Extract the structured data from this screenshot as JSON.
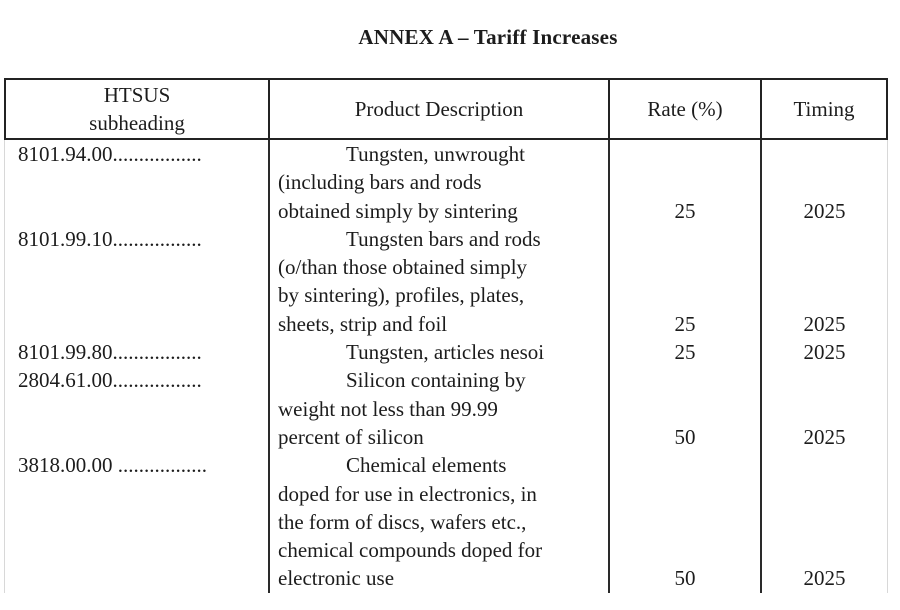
{
  "title": "ANNEX A – Tariff Increases",
  "table": {
    "headers": {
      "htsus_line1": "HTSUS",
      "htsus_line2": "subheading",
      "description": "Product Description",
      "rate": "Rate (%)",
      "timing": "Timing"
    },
    "rows": [
      {
        "code": "8101.94.00.................",
        "description_lines": [
          "Tungsten, unwrought",
          "(including bars and rods",
          "obtained simply by sintering"
        ],
        "rate": "25",
        "timing": "2025"
      },
      {
        "code": "8101.99.10.................",
        "description_lines": [
          "Tungsten bars and rods",
          "(o/than those obtained simply",
          "by sintering), profiles, plates,",
          "sheets, strip and foil"
        ],
        "rate": "25",
        "timing": "2025"
      },
      {
        "code": "8101.99.80.................",
        "description_lines": [
          "Tungsten, articles nesoi"
        ],
        "rate": "25",
        "timing": "2025"
      },
      {
        "code": "2804.61.00.................",
        "description_lines": [
          "Silicon containing by",
          "weight not less than 99.99",
          "percent of silicon"
        ],
        "rate": "50",
        "timing": "2025"
      },
      {
        "code": "3818.00.00 .................",
        "description_lines": [
          "Chemical elements",
          "doped for use in electronics, in",
          "the form of discs, wafers etc.,",
          "chemical compounds doped for",
          "electronic use"
        ],
        "rate": "50",
        "timing": "2025"
      }
    ]
  },
  "colors": {
    "text": "#1c1c1c",
    "header_border": "#232323",
    "body_divider": "#2a2a2a",
    "background": "#ffffff"
  }
}
